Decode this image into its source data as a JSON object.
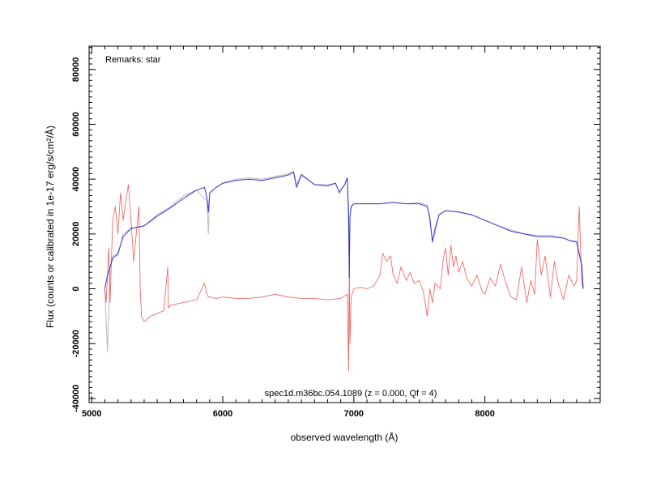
{
  "chart_data": {
    "type": "line",
    "title": "",
    "xlabel": "observed wavelength (Å)",
    "ylabel": "Flux (counts or calibrated in 1e-17 erg/s/cm²/Å)",
    "xlim": [
      4980,
      8880
    ],
    "ylim": [
      -41500,
      88500
    ],
    "x_ticks": [
      5000,
      6000,
      7000,
      8000
    ],
    "x_tick_labels": [
      "5000",
      "6000",
      "7000",
      "8000"
    ],
    "y_ticks": [
      -40000,
      -20000,
      0,
      20000,
      40000,
      60000,
      80000
    ],
    "y_tick_labels": [
      "-40000",
      "-20000",
      "0",
      "20000",
      "40000",
      "60000",
      "80000"
    ],
    "annotations": {
      "remarks": "Remarks: star",
      "spec_id": "spec1d.m36bc.054.1089 (z = 0.000, Qf = 4)"
    },
    "colors": {
      "raw": "#b4b4b4",
      "smoothed": "#2222dd",
      "error": "#ee2222"
    },
    "series": [
      {
        "role": "raw",
        "x": [
          5100,
          5120,
          5140,
          5160,
          5200,
          5240,
          5300,
          5400,
          5500,
          5600,
          5700,
          5800,
          5880,
          5890,
          5900,
          5950,
          6000,
          6100,
          6200,
          6300,
          6400,
          6500,
          6540,
          6563,
          6600,
          6700,
          6800,
          6860,
          6890,
          6900,
          6930,
          6950,
          6960,
          6965,
          6970,
          6980,
          7000,
          7100,
          7200,
          7300,
          7400,
          7500,
          7560,
          7600,
          7620,
          7650,
          7700,
          7800,
          7900,
          8000,
          8100,
          8200,
          8300,
          8400,
          8500,
          8600,
          8650,
          8700,
          8720,
          8740,
          8750
        ],
        "y": [
          0,
          -23000,
          8000,
          12000,
          12000,
          20000,
          22000,
          23000,
          27000,
          30000,
          34000,
          36000,
          32000,
          20000,
          35000,
          37000,
          38500,
          40000,
          40500,
          40000,
          41000,
          42000,
          43000,
          38000,
          42000,
          38000,
          38000,
          38500,
          35000,
          36000,
          38000,
          40500,
          20000,
          4000,
          26000,
          30000,
          31000,
          31000,
          31000,
          31500,
          31000,
          31500,
          30500,
          18000,
          20000,
          27000,
          28500,
          28000,
          27000,
          25000,
          23000,
          21500,
          20000,
          19500,
          19500,
          18500,
          17500,
          17500,
          12000,
          9000,
          0
        ]
      },
      {
        "role": "smoothed",
        "x": [
          5100,
          5120,
          5140,
          5160,
          5200,
          5240,
          5300,
          5400,
          5500,
          5600,
          5700,
          5800,
          5860,
          5880,
          5890,
          5900,
          5950,
          6000,
          6100,
          6200,
          6300,
          6400,
          6500,
          6540,
          6563,
          6600,
          6700,
          6800,
          6860,
          6890,
          6900,
          6930,
          6950,
          6960,
          6965,
          6970,
          6980,
          7000,
          7100,
          7200,
          7300,
          7400,
          7500,
          7560,
          7580,
          7600,
          7620,
          7650,
          7700,
          7800,
          7900,
          8000,
          8100,
          8200,
          8300,
          8400,
          8500,
          8600,
          8650,
          8700,
          8720,
          8740,
          8750
        ],
        "y": [
          0,
          5000,
          8000,
          11000,
          13000,
          19000,
          22000,
          23000,
          26500,
          29500,
          33000,
          36000,
          37000,
          33000,
          28000,
          35000,
          37000,
          38500,
          39500,
          40000,
          39500,
          40500,
          41500,
          42500,
          37000,
          41500,
          38000,
          37500,
          38500,
          35000,
          36000,
          38000,
          40500,
          28000,
          4000,
          26000,
          30000,
          31000,
          31000,
          31000,
          31500,
          31000,
          31000,
          30000,
          26000,
          17000,
          22000,
          27000,
          28500,
          28000,
          27000,
          25000,
          23000,
          21000,
          20000,
          19000,
          19000,
          18500,
          17500,
          17000,
          13000,
          8000,
          0
        ]
      },
      {
        "role": "error",
        "x": [
          5100,
          5110,
          5120,
          5130,
          5140,
          5150,
          5160,
          5180,
          5200,
          5220,
          5240,
          5260,
          5280,
          5300,
          5320,
          5340,
          5360,
          5370,
          5380,
          5400,
          5450,
          5500,
          5550,
          5580,
          5585,
          5600,
          5700,
          5800,
          5860,
          5880,
          5890,
          5900,
          5950,
          6000,
          6100,
          6200,
          6300,
          6400,
          6500,
          6600,
          6700,
          6800,
          6900,
          6950,
          6960,
          6965,
          6970,
          6980,
          7000,
          7050,
          7100,
          7150,
          7200,
          7220,
          7250,
          7280,
          7300,
          7330,
          7360,
          7400,
          7430,
          7460,
          7500,
          7530,
          7560,
          7580,
          7600,
          7620,
          7640,
          7660,
          7680,
          7700,
          7720,
          7740,
          7760,
          7780,
          7800,
          7830,
          7860,
          7900,
          7940,
          7980,
          8000,
          8040,
          8080,
          8120,
          8160,
          8200,
          8240,
          8280,
          8320,
          8350,
          8380,
          8400,
          8430,
          8460,
          8500,
          8530,
          8560,
          8600,
          8640,
          8680,
          8700,
          8720,
          8740,
          8750
        ],
        "y": [
          0,
          -5000,
          5000,
          15000,
          -5000,
          10000,
          25000,
          30000,
          20000,
          35000,
          25000,
          32000,
          38000,
          25000,
          10000,
          20000,
          30000,
          0,
          -10000,
          -12000,
          -10000,
          -9000,
          -8000,
          8000,
          -7000,
          -6000,
          -5000,
          -4000,
          2000,
          -2000,
          -3000,
          -3000,
          -3500,
          -3000,
          -3500,
          -3500,
          -3000,
          -2000,
          -3000,
          -3500,
          -3500,
          -4000,
          -3500,
          -2000,
          -30000,
          10000,
          -20000,
          -3000,
          0,
          500,
          0,
          1000,
          5000,
          13000,
          10000,
          12000,
          5000,
          2000,
          8000,
          3000,
          6000,
          2000,
          3000,
          -1000,
          -10000,
          0,
          -5000,
          2000,
          1000,
          0,
          10000,
          15000,
          5000,
          16000,
          8000,
          12000,
          6000,
          10000,
          4000,
          1000,
          5000,
          -1000,
          -2000,
          4000,
          1000,
          9000,
          2000,
          -3000,
          -4000,
          8000,
          -5000,
          3000,
          -2000,
          18000,
          5000,
          12000,
          -3000,
          10000,
          2000,
          -4000,
          5000,
          1000,
          3000,
          30000,
          2000,
          0
        ]
      }
    ]
  }
}
